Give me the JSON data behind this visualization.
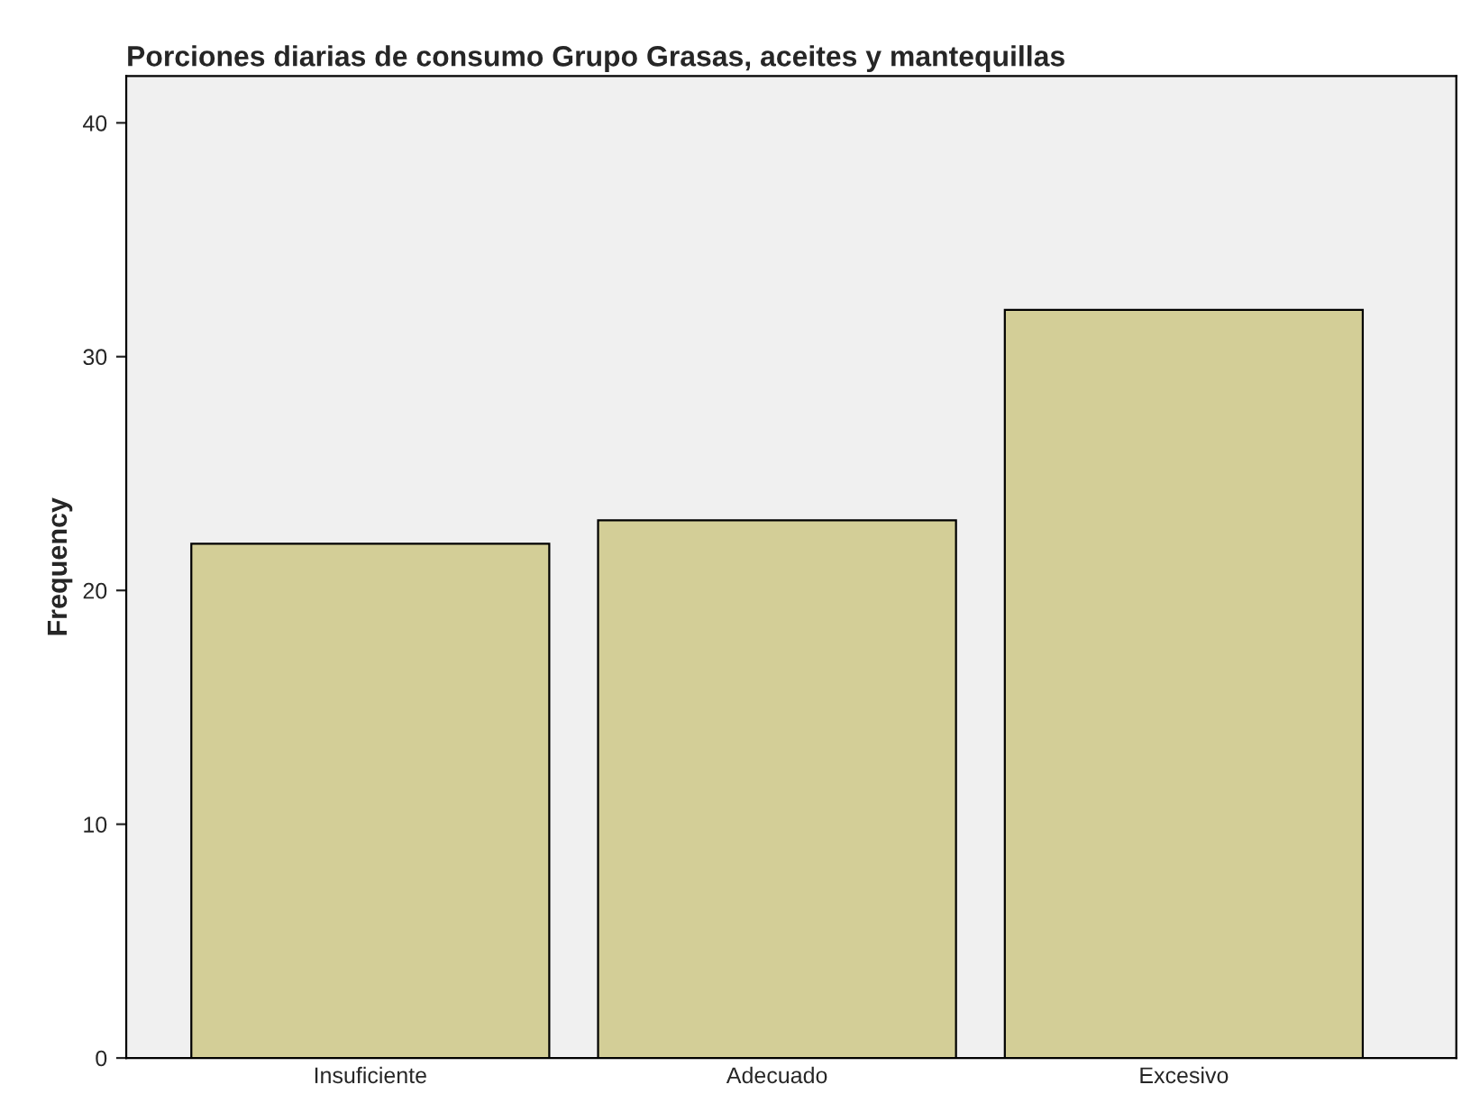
{
  "chart_data": {
    "type": "bar",
    "title": "Porciones diarias de consumo Grupo Grasas, aceites y mantequillas",
    "ylabel": "Frequency",
    "categories": [
      "Insuficiente",
      "Adecuado",
      "Excesivo"
    ],
    "values": [
      22,
      23,
      32
    ],
    "color": "#d3ce97",
    "ylim": [
      0,
      42
    ],
    "yticks": [
      0,
      10,
      20,
      30,
      40
    ],
    "grid": false,
    "legend": false
  }
}
